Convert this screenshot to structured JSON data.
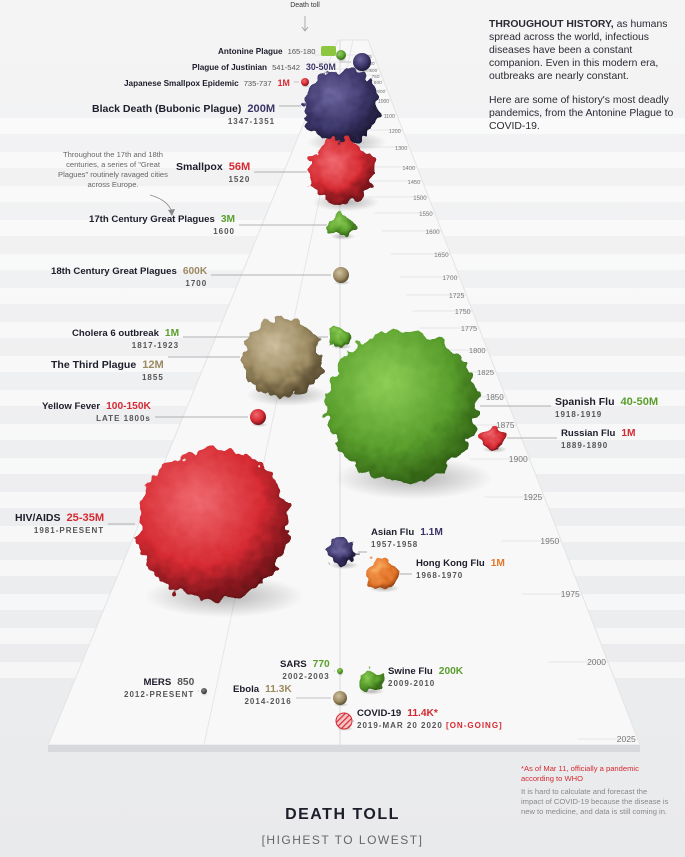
{
  "header_label": "Death toll",
  "intro": {
    "lead": "THROUGHOUT HISTORY,",
    "p1": " as humans spread across the world, infectious diseases have been a constant companion. Even in this modern era, outbreaks are nearly constant.",
    "p2": "Here are some of history's most deadly pandemics, from the Antonine Plague to COVID-19."
  },
  "side_note": "Throughout the 17th and 18th centuries, a series of \"Great Plagues\" routinely ravaged cities across Europe.",
  "footnote": {
    "asterisk": "*As of Mar 11, officially a pandemic according to WHO",
    "caveat": "It is hard to calculate and forecast the impact of COVID-19 because the disease is new to medicine, and data is still coming in."
  },
  "footer": {
    "title": "DEATH TOLL",
    "subtitle": "[HIGHEST TO LOWEST]"
  },
  "colors": {
    "red": "#d62a32",
    "green": "#5a9f2d",
    "purple": "#3b3568",
    "orange": "#e3762b",
    "tan": "#9c8a62",
    "dark": "#1d1d2b"
  },
  "chart_data": {
    "type": "scatter",
    "encoding": "bubble size = death toll; vertical timeline position = start year",
    "timeline_ticks": [
      165,
      200,
      500,
      750,
      800,
      900,
      1000,
      1100,
      1200,
      1300,
      1400,
      1450,
      1500,
      1550,
      1600,
      1650,
      1700,
      1725,
      1750,
      1775,
      1800,
      1825,
      1850,
      1875,
      1900,
      1925,
      1950,
      1975,
      2000,
      2025
    ],
    "pandemics": [
      {
        "name": "Antonine Plague",
        "dates": "165-180",
        "toll": "5M",
        "toll_value": 5000000,
        "color": "#5a9f2d",
        "year": 165
      },
      {
        "name": "Plague of Justinian",
        "dates": "541-542",
        "toll": "30-50M",
        "toll_value": 40000000,
        "color": "#3b3568",
        "year": 541
      },
      {
        "name": "Japanese Smallpox Epidemic",
        "dates": "735-737",
        "toll": "1M",
        "toll_value": 1000000,
        "color": "#d62a32",
        "year": 735
      },
      {
        "name": "Black Death (Bubonic Plague)",
        "dates": "1347-1351",
        "toll": "200M",
        "toll_value": 200000000,
        "color": "#3b3568",
        "year": 1347
      },
      {
        "name": "Smallpox",
        "dates": "1520",
        "toll": "56M",
        "toll_value": 56000000,
        "color": "#d62a32",
        "year": 1520
      },
      {
        "name": "17th Century Great Plagues",
        "dates": "1600",
        "toll": "3M",
        "toll_value": 3000000,
        "color": "#5a9f2d",
        "year": 1600
      },
      {
        "name": "18th Century Great Plagues",
        "dates": "1700",
        "toll": "600K",
        "toll_value": 600000,
        "color": "#9c8a62",
        "year": 1700
      },
      {
        "name": "Cholera 6 outbreak",
        "dates": "1817-1923",
        "toll": "1M",
        "toll_value": 1000000,
        "color": "#5a9f2d",
        "year": 1817
      },
      {
        "name": "The Third Plague",
        "dates": "1855",
        "toll": "12M",
        "toll_value": 12000000,
        "color": "#9c8a62",
        "year": 1855
      },
      {
        "name": "Yellow Fever",
        "dates": "LATE 1800s",
        "toll": "100-150K",
        "toll_value": 125000,
        "color": "#d62a32",
        "year": 1880
      },
      {
        "name": "Spanish Flu",
        "dates": "1918-1919",
        "toll": "40-50M",
        "toll_value": 45000000,
        "color": "#5a9f2d",
        "year": 1918
      },
      {
        "name": "Russian Flu",
        "dates": "1889-1890",
        "toll": "1M",
        "toll_value": 1000000,
        "color": "#d62a32",
        "year": 1889
      },
      {
        "name": "HIV/AIDS",
        "dates": "1981-PRESENT",
        "toll": "25-35M",
        "toll_value": 30000000,
        "color": "#d62a32",
        "year": 1981
      },
      {
        "name": "Asian Flu",
        "dates": "1957-1958",
        "toll": "1.1M",
        "toll_value": 1100000,
        "color": "#3b3568",
        "year": 1957
      },
      {
        "name": "Hong Kong Flu",
        "dates": "1968-1970",
        "toll": "1M",
        "toll_value": 1000000,
        "color": "#e3762b",
        "year": 1968
      },
      {
        "name": "SARS",
        "dates": "2002-2003",
        "toll": "770",
        "toll_value": 770,
        "color": "#5a9f2d",
        "year": 2002
      },
      {
        "name": "Swine Flu",
        "dates": "2009-2010",
        "toll": "200K",
        "toll_value": 200000,
        "color": "#5a9f2d",
        "year": 2009
      },
      {
        "name": "MERS",
        "dates": "2012-PRESENT",
        "toll": "850",
        "toll_value": 850,
        "color": "#555555",
        "year": 2012
      },
      {
        "name": "Ebola",
        "dates": "2014-2016",
        "toll": "11.3K",
        "toll_value": 11300,
        "color": "#9c8a62",
        "year": 2014
      },
      {
        "name": "COVID-19",
        "dates": "2019-MAR 20 2020 [ON-GOING]",
        "toll": "11.4K*",
        "toll_value": 11400,
        "color": "#d62a32",
        "year": 2019
      }
    ]
  }
}
